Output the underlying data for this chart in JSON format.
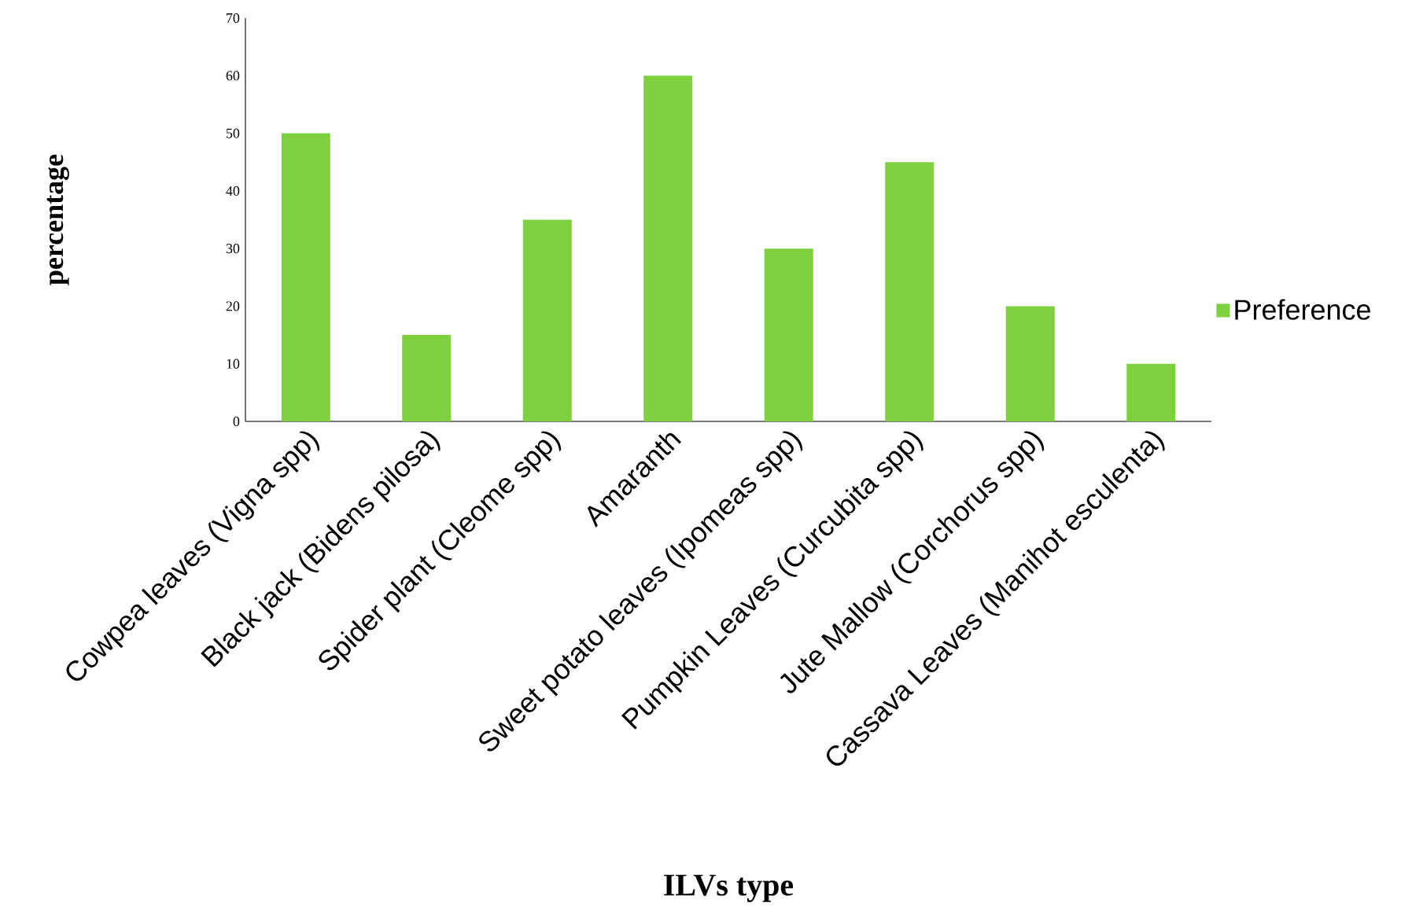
{
  "chart_data": {
    "type": "bar",
    "xlabel": "ILVs type",
    "ylabel": "percentage",
    "categories": [
      "Cowpea leaves (Vigna spp)",
      "Black jack (Bidens pilosa)",
      "Spider plant (Cleome spp)",
      "Amaranth",
      "Sweet potato leaves (Ipomeas spp)",
      "Pumpkin Leaves (Curcubita spp)",
      "Jute Mallow (Corchorus spp)",
      "Cassava Leaves (Manihot esculenta)"
    ],
    "series": [
      {
        "name": "Preference",
        "color": "#7ed03f",
        "values": [
          50,
          15,
          35,
          60,
          30,
          45,
          20,
          10
        ]
      }
    ],
    "ylim": [
      0,
      70
    ],
    "yticks": [
      0,
      10,
      20,
      30,
      40,
      50,
      60,
      70
    ],
    "grid": false,
    "legend": "right"
  }
}
